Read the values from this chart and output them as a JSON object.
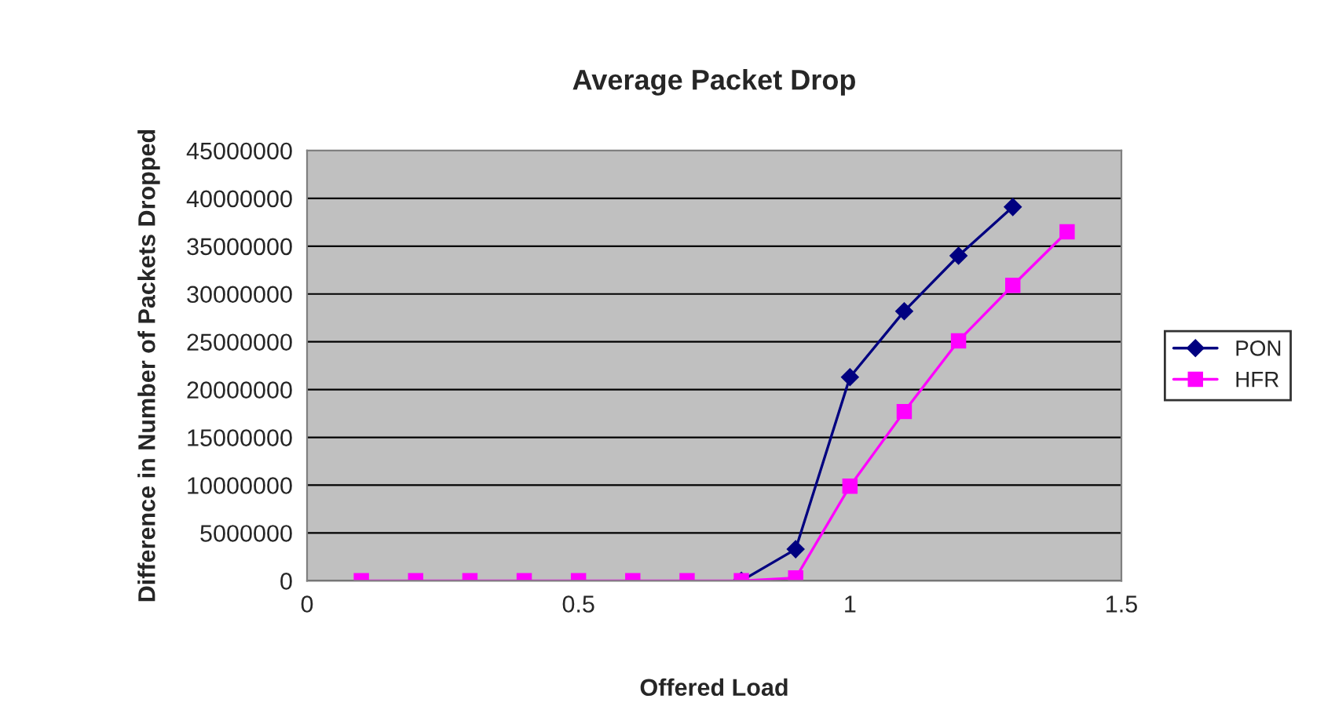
{
  "chart_data": {
    "type": "line",
    "title": "Average Packet Drop",
    "xlabel": "Offered Load",
    "ylabel": "Difference in Number of Packets Dropped",
    "xlim": [
      0,
      1.5
    ],
    "xticks": [
      0,
      0.5,
      1,
      1.5
    ],
    "ylim": [
      0,
      45000000
    ],
    "yticks": [
      0,
      5000000,
      10000000,
      15000000,
      20000000,
      25000000,
      30000000,
      35000000,
      40000000,
      45000000
    ],
    "grid": "y",
    "legend": "right",
    "series": [
      {
        "name": "PON",
        "color": "#000080",
        "marker": "diamond",
        "x": [
          0.8,
          0.9,
          1.0,
          1.1,
          1.2,
          1.3
        ],
        "values": [
          0,
          3300000,
          21300000,
          28200000,
          34000000,
          39100000
        ]
      },
      {
        "name": "HFR",
        "color": "#ff00ff",
        "marker": "square",
        "x": [
          0.1,
          0.2,
          0.3,
          0.4,
          0.5,
          0.6,
          0.7,
          0.8,
          0.9,
          1.0,
          1.1,
          1.2,
          1.3,
          1.4
        ],
        "values": [
          0,
          0,
          0,
          0,
          0,
          0,
          0,
          0,
          300000,
          9900000,
          17700000,
          25100000,
          30900000,
          36500000
        ]
      }
    ]
  }
}
